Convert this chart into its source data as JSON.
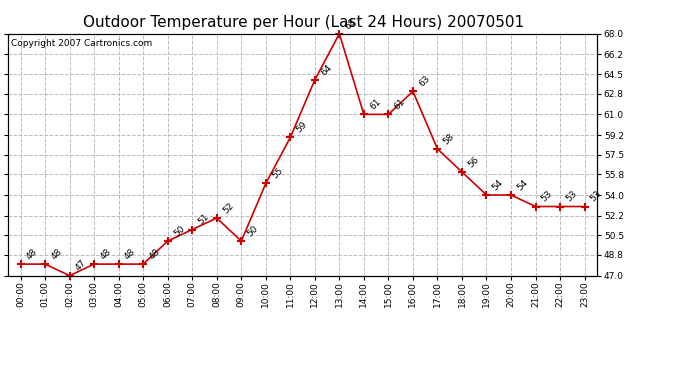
{
  "title": "Outdoor Temperature per Hour (Last 24 Hours) 20070501",
  "copyright_text": "Copyright 2007 Cartronics.com",
  "hours": [
    "00:00",
    "01:00",
    "02:00",
    "03:00",
    "04:00",
    "05:00",
    "06:00",
    "07:00",
    "08:00",
    "09:00",
    "10:00",
    "11:00",
    "12:00",
    "13:00",
    "14:00",
    "15:00",
    "16:00",
    "17:00",
    "18:00",
    "19:00",
    "20:00",
    "21:00",
    "22:00",
    "23:00"
  ],
  "temps": [
    48,
    48,
    47,
    48,
    48,
    48,
    50,
    51,
    52,
    50,
    55,
    59,
    64,
    68,
    61,
    61,
    63,
    58,
    56,
    54,
    54,
    53,
    53,
    53
  ],
  "line_color": "#cc0000",
  "marker": "+",
  "marker_size": 6,
  "marker_linewidth": 1.5,
  "line_width": 1.2,
  "ylim_min": 47.0,
  "ylim_max": 68.0,
  "ytick_values": [
    47.0,
    48.8,
    50.5,
    52.2,
    54.0,
    55.8,
    57.5,
    59.2,
    61.0,
    62.8,
    64.5,
    66.2,
    68.0
  ],
  "grid_color": "#bbbbbb",
  "grid_style": "--",
  "bg_color": "#ffffff",
  "label_fontsize": 6.5,
  "title_fontsize": 11,
  "annotation_fontsize": 6.5,
  "copyright_fontsize": 6.5
}
